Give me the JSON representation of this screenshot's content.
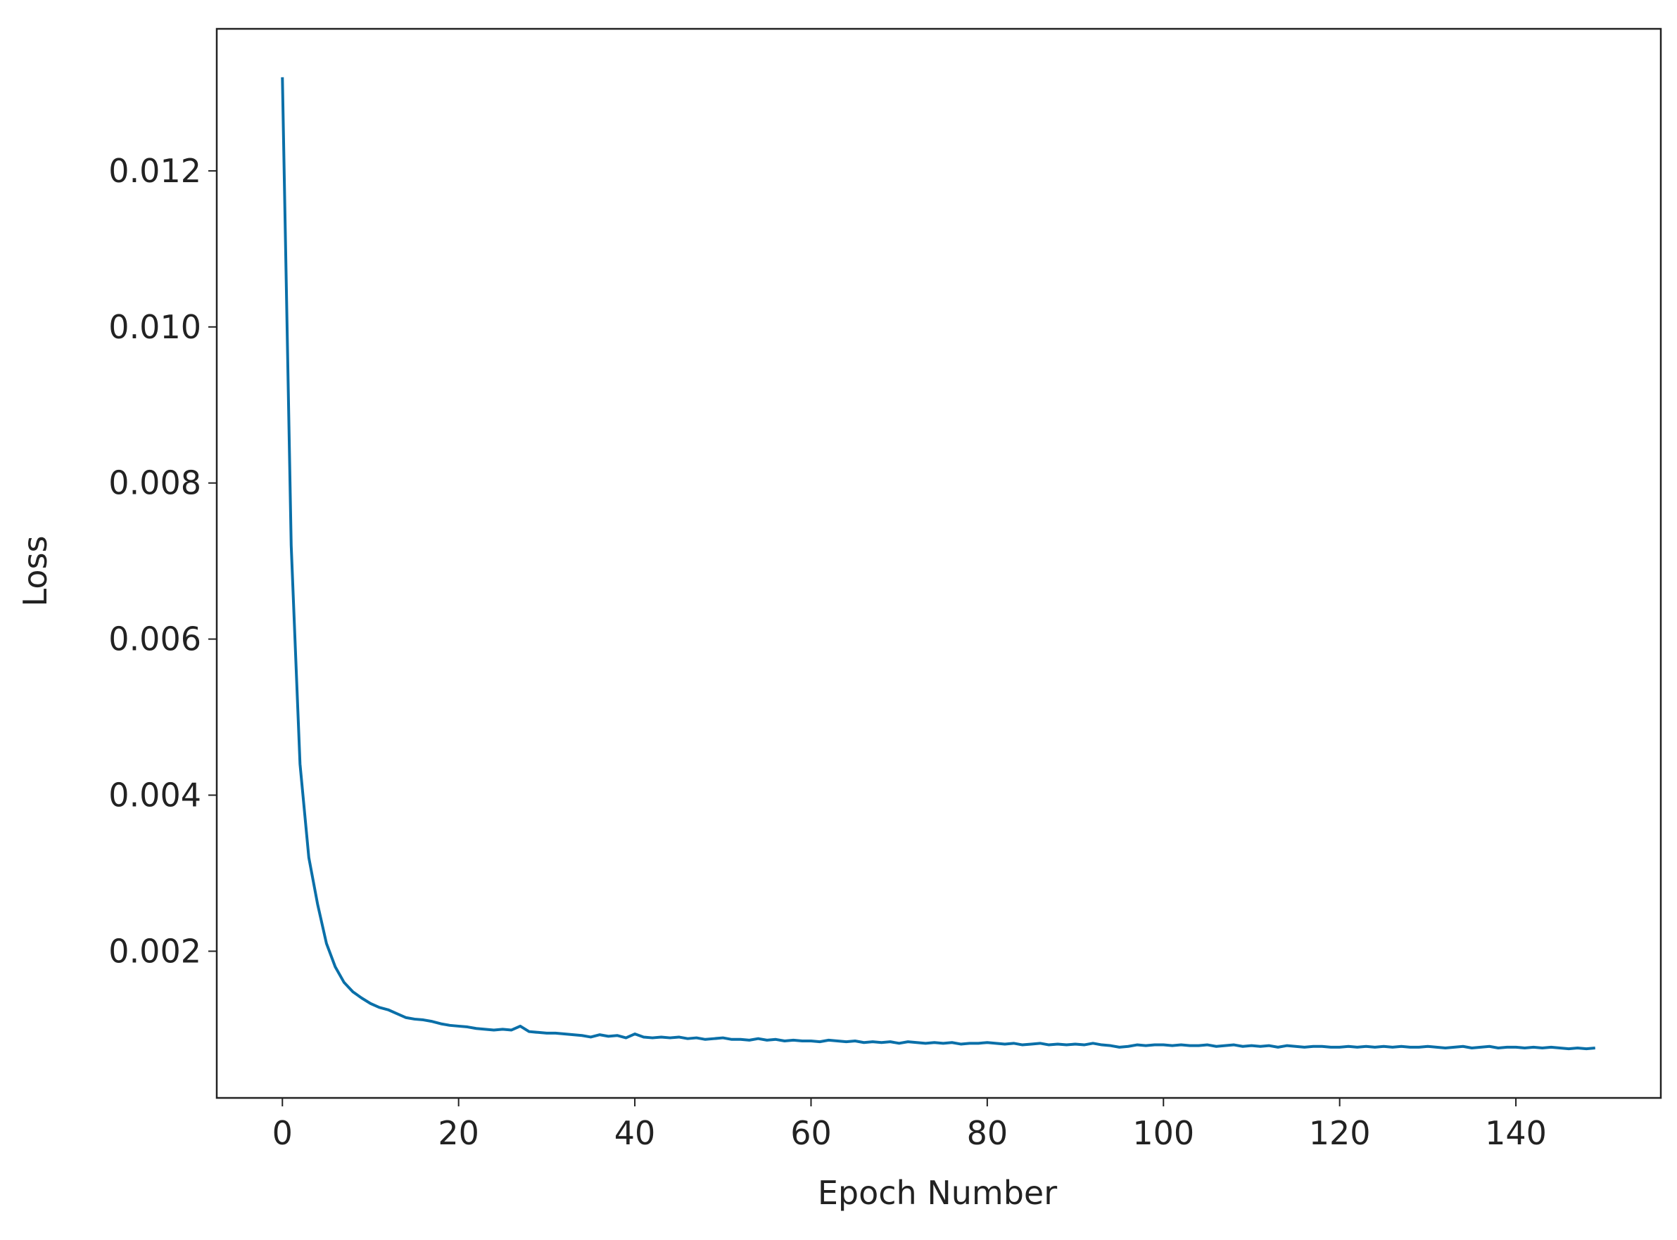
{
  "chart_data": {
    "type": "line",
    "xlabel": "Epoch Number",
    "ylabel": "Loss",
    "color": "#0a6fa8",
    "x": [
      0,
      1,
      2,
      3,
      4,
      5,
      6,
      7,
      8,
      9,
      10,
      11,
      12,
      13,
      14,
      15,
      16,
      17,
      18,
      19,
      20,
      21,
      22,
      23,
      24,
      25,
      26,
      27,
      28,
      29,
      30,
      31,
      32,
      33,
      34,
      35,
      36,
      37,
      38,
      39,
      40,
      41,
      42,
      43,
      44,
      45,
      46,
      47,
      48,
      49,
      50,
      51,
      52,
      53,
      54,
      55,
      56,
      57,
      58,
      59,
      60,
      61,
      62,
      63,
      64,
      65,
      66,
      67,
      68,
      69,
      70,
      71,
      72,
      73,
      74,
      75,
      76,
      77,
      78,
      79,
      80,
      81,
      82,
      83,
      84,
      85,
      86,
      87,
      88,
      89,
      90,
      91,
      92,
      93,
      94,
      95,
      96,
      97,
      98,
      99,
      100,
      101,
      102,
      103,
      104,
      105,
      106,
      107,
      108,
      109,
      110,
      111,
      112,
      113,
      114,
      115,
      116,
      117,
      118,
      119,
      120,
      121,
      122,
      123,
      124,
      125,
      126,
      127,
      128,
      129,
      130,
      131,
      132,
      133,
      134,
      135,
      136,
      137,
      138,
      139,
      140,
      141,
      142,
      143,
      144,
      145,
      146,
      147,
      148,
      149
    ],
    "values": [
      0.0132,
      0.0072,
      0.0044,
      0.0032,
      0.0026,
      0.0021,
      0.0018,
      0.0016,
      0.00148,
      0.0014,
      0.00133,
      0.00128,
      0.00125,
      0.0012,
      0.00115,
      0.00113,
      0.00112,
      0.0011,
      0.00107,
      0.00105,
      0.00104,
      0.00103,
      0.00101,
      0.001,
      0.00099,
      0.001,
      0.00099,
      0.00104,
      0.00097,
      0.00096,
      0.00095,
      0.00095,
      0.00094,
      0.00093,
      0.00092,
      0.0009,
      0.00093,
      0.00091,
      0.00092,
      0.00089,
      0.00094,
      0.0009,
      0.00089,
      0.0009,
      0.00089,
      0.0009,
      0.00088,
      0.00089,
      0.00087,
      0.00088,
      0.00089,
      0.00087,
      0.00087,
      0.00086,
      0.00088,
      0.00086,
      0.00087,
      0.00085,
      0.00086,
      0.00085,
      0.00085,
      0.00084,
      0.00086,
      0.00085,
      0.00084,
      0.00085,
      0.00083,
      0.00084,
      0.00083,
      0.00084,
      0.00082,
      0.00084,
      0.00083,
      0.00082,
      0.00083,
      0.00082,
      0.00083,
      0.00081,
      0.00082,
      0.00082,
      0.00083,
      0.00082,
      0.00081,
      0.00082,
      0.0008,
      0.00081,
      0.00082,
      0.0008,
      0.00081,
      0.0008,
      0.00081,
      0.0008,
      0.00082,
      0.0008,
      0.00079,
      0.00077,
      0.00078,
      0.0008,
      0.00079,
      0.0008,
      0.0008,
      0.00079,
      0.0008,
      0.00079,
      0.00079,
      0.0008,
      0.00078,
      0.00079,
      0.0008,
      0.00078,
      0.00079,
      0.00078,
      0.00079,
      0.00077,
      0.00079,
      0.00078,
      0.00077,
      0.00078,
      0.00078,
      0.00077,
      0.00077,
      0.00078,
      0.00077,
      0.00078,
      0.00077,
      0.00078,
      0.00077,
      0.00078,
      0.00077,
      0.00077,
      0.00078,
      0.00077,
      0.00076,
      0.00077,
      0.00078,
      0.00076,
      0.00077,
      0.00078,
      0.00076,
      0.00077,
      0.00077,
      0.00076,
      0.00077,
      0.00076,
      0.00077,
      0.00076,
      0.00075,
      0.00076,
      0.00075,
      0.00076
    ],
    "xlim": [
      -7.45,
      156.45
    ],
    "xticks": [
      0,
      20,
      40,
      60,
      80,
      100,
      120,
      140
    ],
    "ylim": [
      0.00012,
      0.01382
    ],
    "yticks": [
      0.002,
      0.004,
      0.006,
      0.008,
      {
        "value": 0.01,
        "label": "0.010"
      },
      0.012
    ]
  }
}
